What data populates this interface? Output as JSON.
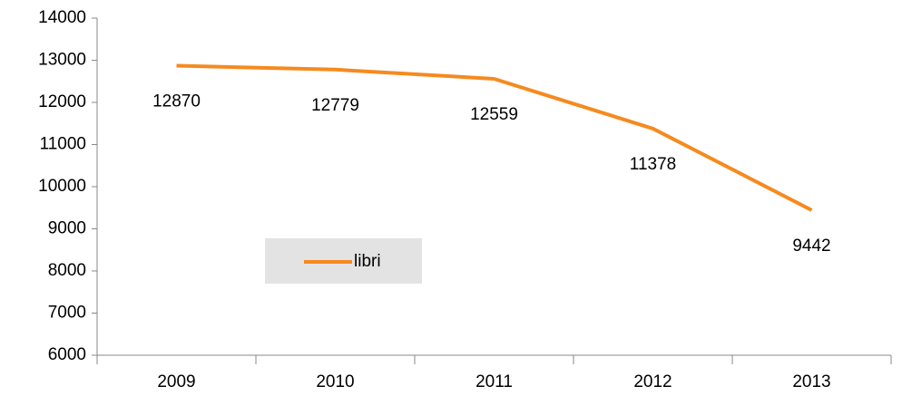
{
  "chart_data": {
    "type": "line",
    "categories": [
      "2009",
      "2010",
      "2011",
      "2012",
      "2013"
    ],
    "series": [
      {
        "name": "libri",
        "color": "#f58a1f",
        "values": [
          12870,
          12779,
          12559,
          11378,
          9442
        ]
      }
    ],
    "ylim": [
      6000,
      14000
    ],
    "yticks": [
      6000,
      7000,
      8000,
      9000,
      10000,
      11000,
      12000,
      13000,
      14000
    ],
    "grid": false,
    "data_labels": true,
    "legend": "inside"
  }
}
